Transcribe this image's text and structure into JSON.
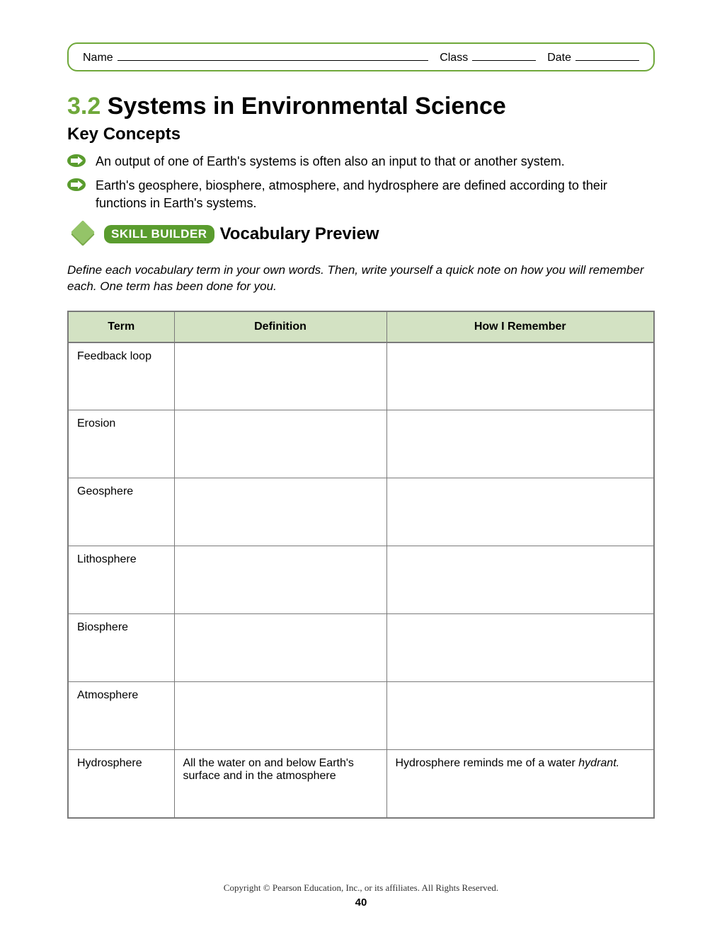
{
  "header": {
    "name_label": "Name",
    "class_label": "Class",
    "date_label": "Date",
    "border_color": "#6fa83a"
  },
  "title": {
    "section_number": "3.2",
    "text": "Systems in Environmental Science",
    "section_number_color": "#6fa83a"
  },
  "key_concepts": {
    "heading": "Key Concepts",
    "items": [
      "An output of one of Earth's systems is often also an input to that or another system.",
      "Earth's geosphere, biosphere, atmosphere, and hydrosphere are defined according to their functions in Earth's systems."
    ],
    "arrow_color": "#5a9c2e"
  },
  "vocab": {
    "badge_text": "SKILL BUILDER",
    "badge_bg": "#5a9c2e",
    "title": "Vocabulary Preview",
    "diamond_color": "#7aaa4a",
    "instructions": "Define each vocabulary term in your own words. Then, write yourself a quick note on how you will remember each. One term has been done for you."
  },
  "table": {
    "header_bg": "#d3e2c3",
    "border_color": "#7a7a7a",
    "columns": [
      "Term",
      "Definition",
      "How I Remember"
    ],
    "rows": [
      {
        "term": "Feedback loop",
        "definition": "",
        "remember": ""
      },
      {
        "term": "Erosion",
        "definition": "",
        "remember": ""
      },
      {
        "term": "Geosphere",
        "definition": "",
        "remember": ""
      },
      {
        "term": "Lithosphere",
        "definition": "",
        "remember": ""
      },
      {
        "term": "Biosphere",
        "definition": "",
        "remember": ""
      },
      {
        "term": "Atmosphere",
        "definition": "",
        "remember": ""
      },
      {
        "term": "Hydrosphere",
        "definition": "All the water on and below Earth's surface and in the atmosphere",
        "remember": "Hydrosphere reminds me of a water ",
        "remember_italic": "hydrant."
      }
    ]
  },
  "footer": {
    "copyright": "Copyright © Pearson Education, Inc., or its affiliates. All Rights Reserved.",
    "page_number": "40"
  }
}
